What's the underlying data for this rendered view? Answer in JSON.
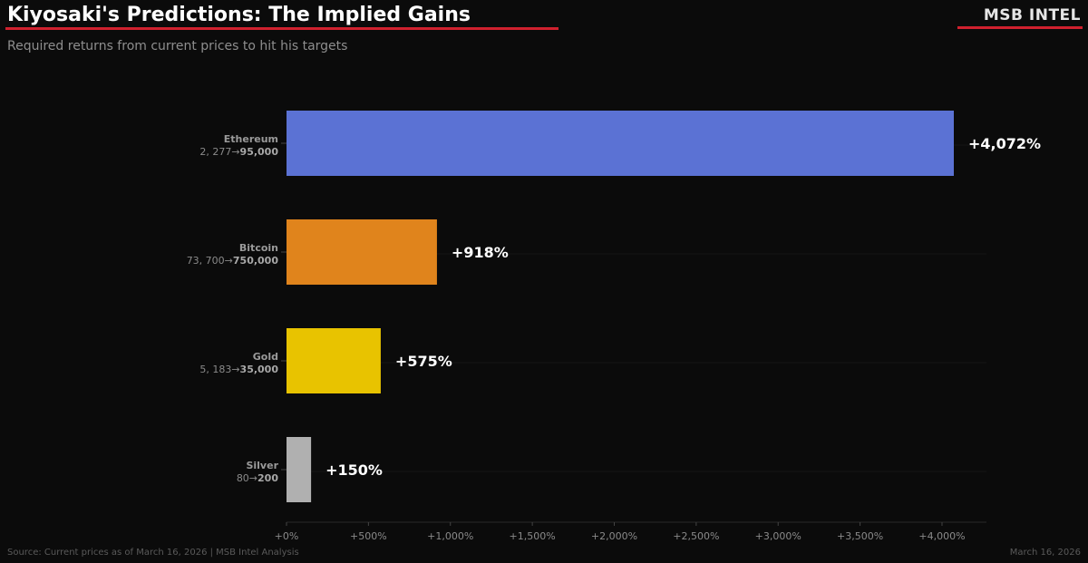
{
  "header": {
    "title": "Kiyosaki's Predictions: The Implied Gains",
    "subtitle": "Required returns from current prices to hit his targets",
    "brand": "MSB INTEL"
  },
  "footer": {
    "source": "Source: Current prices as of March 16, 2026 | MSB Intel Analysis",
    "date": "March 16, 2026"
  },
  "colors": {
    "background": "#0b0b0b",
    "accent_red": "#d0202e"
  },
  "chart_data": {
    "type": "bar",
    "orientation": "horizontal",
    "title": "Kiyosaki's Predictions: The Implied Gains",
    "xlim": [
      0,
      4300
    ],
    "grid": false,
    "legend": "none",
    "x_ticks": [
      {
        "value": 0,
        "label": "+0%"
      },
      {
        "value": 500,
        "label": "+500%"
      },
      {
        "value": 1000,
        "label": "+1,000%"
      },
      {
        "value": 1500,
        "label": "+1,500%"
      },
      {
        "value": 2000,
        "label": "+2,000%"
      },
      {
        "value": 2500,
        "label": "+2,500%"
      },
      {
        "value": 3000,
        "label": "+3,000%"
      },
      {
        "value": 3500,
        "label": "+3,500%"
      },
      {
        "value": 4000,
        "label": "+4,000%"
      }
    ],
    "bars": [
      {
        "name": "Ethereum",
        "current": "2, 277",
        "target": "95,000",
        "value": 4072,
        "label": "+4,072%",
        "color": "#5b72d4"
      },
      {
        "name": "Bitcoin",
        "current": "73, 700",
        "target": "750,000",
        "value": 918,
        "label": "+918%",
        "color": "#e0841c"
      },
      {
        "name": "Gold",
        "current": "5, 183",
        "target": "35,000",
        "value": 575,
        "label": "+575%",
        "color": "#e8c300"
      },
      {
        "name": "Silver",
        "current": "80",
        "target": "200",
        "value": 150,
        "label": "+150%",
        "color": "#b0b0b0"
      }
    ]
  }
}
